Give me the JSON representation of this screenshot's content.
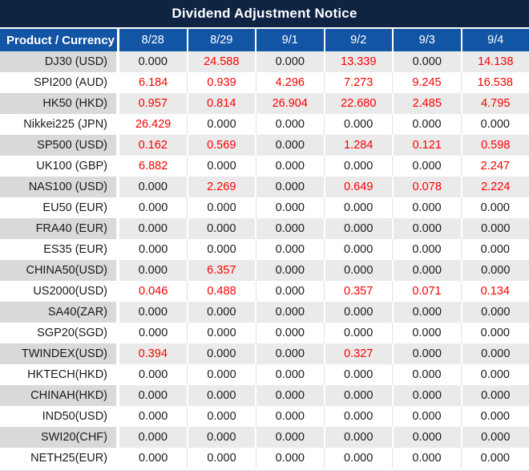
{
  "title": "Dividend Adjustment Notice",
  "table": {
    "product_header": "Product / Currency",
    "dates": [
      "8/28",
      "8/29",
      "9/1",
      "9/2",
      "9/3",
      "9/4"
    ],
    "rows": [
      {
        "product": "DJ30 (USD)",
        "values": [
          "0.000",
          "24.588",
          "0.000",
          "13.339",
          "0.000",
          "14.138"
        ]
      },
      {
        "product": "SPI200 (AUD)",
        "values": [
          "6.184",
          "0.939",
          "4.296",
          "7.273",
          "9.245",
          "16.538"
        ]
      },
      {
        "product": "HK50 (HKD)",
        "values": [
          "0.957",
          "0.814",
          "26.904",
          "22.680",
          "2.485",
          "4.795"
        ]
      },
      {
        "product": "Nikkei225 (JPN)",
        "values": [
          "26.429",
          "0.000",
          "0.000",
          "0.000",
          "0.000",
          "0.000"
        ]
      },
      {
        "product": "SP500 (USD)",
        "values": [
          "0.162",
          "0.569",
          "0.000",
          "1.284",
          "0.121",
          "0.598"
        ]
      },
      {
        "product": "UK100 (GBP)",
        "values": [
          "6.882",
          "0.000",
          "0.000",
          "0.000",
          "0.000",
          "2.247"
        ]
      },
      {
        "product": "NAS100 (USD)",
        "values": [
          "0.000",
          "2.269",
          "0.000",
          "0.649",
          "0.078",
          "2.224"
        ]
      },
      {
        "product": "EU50 (EUR)",
        "values": [
          "0.000",
          "0.000",
          "0.000",
          "0.000",
          "0.000",
          "0.000"
        ]
      },
      {
        "product": "FRA40 (EUR)",
        "values": [
          "0.000",
          "0.000",
          "0.000",
          "0.000",
          "0.000",
          "0.000"
        ]
      },
      {
        "product": "ES35 (EUR)",
        "values": [
          "0.000",
          "0.000",
          "0.000",
          "0.000",
          "0.000",
          "0.000"
        ]
      },
      {
        "product": "CHINA50(USD)",
        "values": [
          "0.000",
          "6.357",
          "0.000",
          "0.000",
          "0.000",
          "0.000"
        ]
      },
      {
        "product": "US2000(USD)",
        "values": [
          "0.046",
          "0.488",
          "0.000",
          "0.357",
          "0.071",
          "0.134"
        ]
      },
      {
        "product": "SA40(ZAR)",
        "values": [
          "0.000",
          "0.000",
          "0.000",
          "0.000",
          "0.000",
          "0.000"
        ]
      },
      {
        "product": "SGP20(SGD)",
        "values": [
          "0.000",
          "0.000",
          "0.000",
          "0.000",
          "0.000",
          "0.000"
        ]
      },
      {
        "product": "TWINDEX(USD)",
        "values": [
          "0.394",
          "0.000",
          "0.000",
          "0.327",
          "0.000",
          "0.000"
        ]
      },
      {
        "product": "HKTECH(HKD)",
        "values": [
          "0.000",
          "0.000",
          "0.000",
          "0.000",
          "0.000",
          "0.000"
        ]
      },
      {
        "product": "CHINAH(HKD)",
        "values": [
          "0.000",
          "0.000",
          "0.000",
          "0.000",
          "0.000",
          "0.000"
        ]
      },
      {
        "product": "IND50(USD)",
        "values": [
          "0.000",
          "0.000",
          "0.000",
          "0.000",
          "0.000",
          "0.000"
        ]
      },
      {
        "product": "SWI20(CHF)",
        "values": [
          "0.000",
          "0.000",
          "0.000",
          "0.000",
          "0.000",
          "0.000"
        ]
      },
      {
        "product": "NETH25(EUR)",
        "values": [
          "0.000",
          "0.000",
          "0.000",
          "0.000",
          "0.000",
          "0.000"
        ]
      }
    ]
  },
  "colors": {
    "title_bg": "#0f2342",
    "header_bg": "#1355a5",
    "stripe_row_bg": "#eaeaea",
    "stripe_name_bg": "#d9d9d9",
    "nonzero_value": "#fb0000",
    "zero_value": "#1a1a1a",
    "header_text": "#ffffff"
  }
}
